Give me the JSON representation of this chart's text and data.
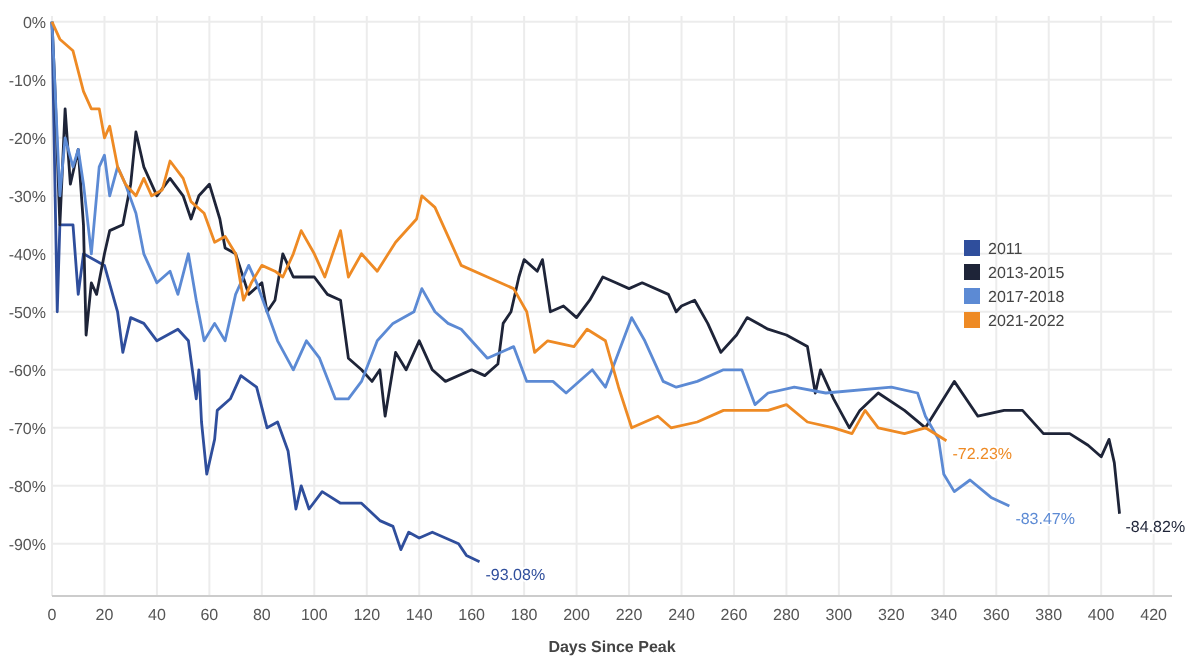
{
  "chart_data": {
    "type": "line",
    "xlabel": "Days Since Peak",
    "xlim": [
      0,
      427
    ],
    "ylim": [
      -99,
      1
    ],
    "xticks": [
      0,
      20,
      40,
      60,
      80,
      100,
      120,
      140,
      160,
      180,
      200,
      220,
      240,
      260,
      280,
      300,
      320,
      340,
      360,
      380,
      400,
      420
    ],
    "yticks": [
      {
        "value": 0,
        "label": "0%"
      },
      {
        "value": -10,
        "label": "-10%"
      },
      {
        "value": -20,
        "label": "-20%"
      },
      {
        "value": -30,
        "label": "-30%"
      },
      {
        "value": -40,
        "label": "-40%"
      },
      {
        "value": -50,
        "label": "-50%"
      },
      {
        "value": -60,
        "label": "-60%"
      },
      {
        "value": -70,
        "label": "-70%"
      },
      {
        "value": -80,
        "label": "-80%"
      },
      {
        "value": -90,
        "label": "-90%"
      }
    ],
    "grid": true,
    "legend": "right",
    "line_style": "solid",
    "series": [
      {
        "name": "2011",
        "color": "#2f4e9c",
        "x": [
          0,
          2,
          3,
          8,
          10,
          12,
          20,
          25,
          27,
          30,
          35,
          40,
          48,
          52,
          55,
          56,
          57,
          59,
          62,
          63,
          68,
          72,
          78,
          82,
          86,
          90,
          93,
          95,
          98,
          103,
          110,
          118,
          125,
          130,
          133,
          136,
          140,
          145,
          150,
          155,
          158,
          163
        ],
        "values": [
          0,
          -50,
          -35,
          -35,
          -47,
          -40,
          -42,
          -50,
          -57,
          -51,
          -52,
          -55,
          -53,
          -55,
          -65,
          -60,
          -69,
          -78,
          -72,
          -67,
          -65,
          -61,
          -63,
          -70,
          -69,
          -74,
          -84,
          -80,
          -84,
          -81,
          -83,
          -83,
          -86,
          -87,
          -91,
          -88,
          -89,
          -88,
          -89,
          -90,
          -92,
          -93.08
        ]
      },
      {
        "name": "2013-2015",
        "color": "#1e2438",
        "x": [
          0,
          1,
          3,
          5,
          7,
          10,
          12,
          13,
          15,
          17,
          20,
          22,
          27,
          30,
          32,
          35,
          40,
          45,
          50,
          53,
          56,
          60,
          64,
          66,
          70,
          75,
          80,
          82,
          85,
          88,
          92,
          100,
          105,
          110,
          113,
          118,
          122,
          125,
          127,
          131,
          135,
          140,
          145,
          150,
          160,
          165,
          170,
          172,
          175,
          178,
          180,
          185,
          187,
          190,
          195,
          200,
          205,
          210,
          215,
          220,
          225,
          235,
          238,
          240,
          245,
          250,
          255,
          261,
          265,
          273,
          280,
          288,
          291,
          293,
          298,
          304,
          308,
          315,
          325,
          333,
          344,
          353,
          363,
          370,
          378,
          388,
          395,
          400,
          403,
          405,
          407
        ],
        "values": [
          0,
          -10,
          -35,
          -15,
          -28,
          -22,
          -35,
          -54,
          -45,
          -47,
          -40,
          -36,
          -35,
          -28,
          -19,
          -25,
          -30,
          -27,
          -30,
          -34,
          -30,
          -28,
          -34,
          -39,
          -40,
          -47,
          -45,
          -50,
          -48,
          -40,
          -44,
          -44,
          -47,
          -48,
          -58,
          -60,
          -62,
          -60,
          -68,
          -57,
          -60,
          -55,
          -60,
          -62,
          -60,
          -61,
          -59,
          -52,
          -50,
          -44,
          -41,
          -43,
          -41,
          -50,
          -49,
          -51,
          -48,
          -44,
          -45,
          -46,
          -45,
          -47,
          -50,
          -49,
          -48,
          -52,
          -57,
          -54,
          -51,
          -53,
          -54,
          -56,
          -64,
          -60,
          -65,
          -70,
          -67,
          -64,
          -67,
          -70,
          -62,
          -68,
          -67,
          -67,
          -71,
          -71,
          -73,
          -75,
          -72,
          -76,
          -84.82
        ]
      },
      {
        "name": "2017-2018",
        "color": "#5c8ad4",
        "x": [
          0,
          1,
          3,
          5,
          8,
          10,
          12,
          15,
          18,
          20,
          22,
          25,
          28,
          32,
          35,
          40,
          45,
          48,
          52,
          55,
          58,
          62,
          66,
          70,
          75,
          78,
          82,
          86,
          92,
          97,
          102,
          108,
          113,
          118,
          124,
          130,
          138,
          141,
          146,
          151,
          156,
          166,
          176,
          181,
          191,
          196,
          206,
          211,
          221,
          226,
          233,
          238,
          246,
          256,
          263,
          268,
          273,
          283,
          295,
          320,
          330,
          333,
          338,
          340,
          344,
          350,
          358,
          365
        ],
        "values": [
          0,
          -10,
          -30,
          -20,
          -25,
          -22,
          -28,
          -40,
          -25,
          -23,
          -30,
          -25,
          -28,
          -33,
          -40,
          -45,
          -43,
          -47,
          -40,
          -48,
          -55,
          -52,
          -55,
          -47,
          -42,
          -45,
          -50,
          -55,
          -60,
          -55,
          -58,
          -65,
          -65,
          -62,
          -55,
          -52,
          -50,
          -46,
          -50,
          -52,
          -53,
          -58,
          -56,
          -62,
          -62,
          -64,
          -60,
          -63,
          -51,
          -55,
          -62,
          -63,
          -62,
          -60,
          -60,
          -66,
          -64,
          -63,
          -64,
          -63,
          -64,
          -68,
          -72,
          -78,
          -81,
          -79,
          -82,
          -83.47
        ]
      },
      {
        "name": "2021-2022",
        "color": "#ee8a24",
        "x": [
          0,
          3,
          8,
          12,
          15,
          18,
          20,
          22,
          25,
          28,
          32,
          35,
          38,
          42,
          45,
          50,
          53,
          58,
          62,
          66,
          70,
          73,
          76,
          80,
          85,
          88,
          92,
          95,
          100,
          104,
          110,
          113,
          118,
          124,
          131,
          139,
          141,
          146,
          151,
          156,
          166,
          176,
          181,
          184,
          189,
          199,
          204,
          211,
          216,
          221,
          231,
          236,
          246,
          256,
          263,
          273,
          280,
          288,
          298,
          305,
          310,
          315,
          325,
          333,
          341
        ],
        "values": [
          0,
          -3,
          -5,
          -12,
          -15,
          -15,
          -20,
          -18,
          -25,
          -28,
          -30,
          -27,
          -30,
          -29,
          -24,
          -27,
          -31,
          -33,
          -38,
          -37,
          -40,
          -48,
          -45,
          -42,
          -43,
          -44,
          -40,
          -36,
          -40,
          -44,
          -36,
          -44,
          -40,
          -43,
          -38,
          -34,
          -30,
          -32,
          -37,
          -42,
          -44,
          -46,
          -50,
          -57,
          -55,
          -56,
          -53,
          -55,
          -63,
          -70,
          -68,
          -70,
          -69,
          -67,
          -67,
          -67,
          -66,
          -69,
          -70,
          -71,
          -67,
          -70,
          -71,
          -70,
          -72.23
        ]
      }
    ],
    "annotations": [
      {
        "text": "-93.08%",
        "x": 163,
        "y": -93.08
      },
      {
        "text": "-84.82%",
        "x": 407,
        "y": -84.82
      },
      {
        "text": "-83.47%",
        "x": 365,
        "y": -83.47
      },
      {
        "text": "-72.23%",
        "x": 341,
        "y": -72.23
      }
    ]
  }
}
